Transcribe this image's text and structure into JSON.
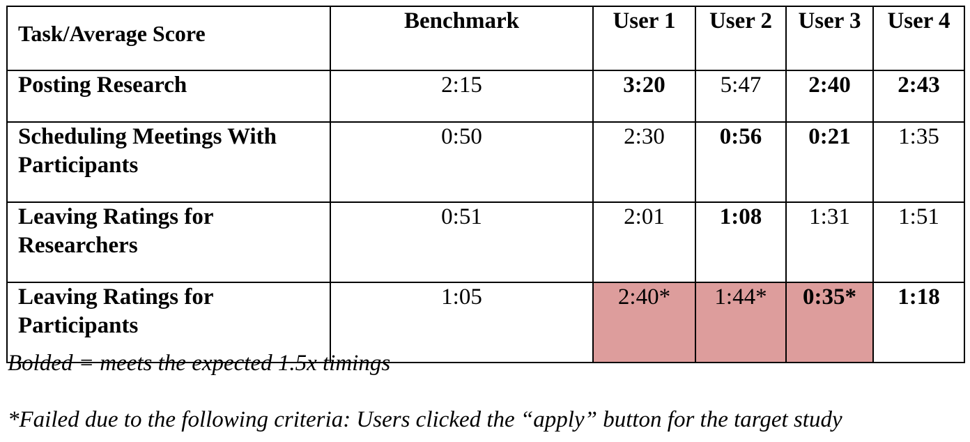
{
  "table": {
    "headers": [
      "Task/Average Score",
      "Benchmark",
      "User 1",
      "User 2",
      "User 3",
      "User 4"
    ],
    "rows": [
      {
        "task": "Posting Research",
        "values": [
          {
            "text": "2:15",
            "bold": false,
            "failed": false
          },
          {
            "text": "3:20",
            "bold": true,
            "failed": false
          },
          {
            "text": "5:47",
            "bold": false,
            "failed": false
          },
          {
            "text": "2:40",
            "bold": true,
            "failed": false
          },
          {
            "text": "2:43",
            "bold": true,
            "failed": false
          }
        ]
      },
      {
        "task": "Scheduling Meetings With Participants",
        "values": [
          {
            "text": "0:50",
            "bold": false,
            "failed": false
          },
          {
            "text": "2:30",
            "bold": false,
            "failed": false
          },
          {
            "text": "0:56",
            "bold": true,
            "failed": false
          },
          {
            "text": "0:21",
            "bold": true,
            "failed": false
          },
          {
            "text": "1:35",
            "bold": false,
            "failed": false
          }
        ]
      },
      {
        "task": "Leaving Ratings for Researchers",
        "values": [
          {
            "text": "0:51",
            "bold": false,
            "failed": false
          },
          {
            "text": "2:01",
            "bold": false,
            "failed": false
          },
          {
            "text": "1:08",
            "bold": true,
            "failed": false
          },
          {
            "text": "1:31",
            "bold": false,
            "failed": false
          },
          {
            "text": "1:51",
            "bold": false,
            "failed": false
          }
        ]
      },
      {
        "task": "Leaving Ratings for Participants",
        "values": [
          {
            "text": "1:05",
            "bold": false,
            "failed": false
          },
          {
            "text": "2:40*",
            "bold": false,
            "failed": true
          },
          {
            "text": "1:44*",
            "bold": false,
            "failed": true
          },
          {
            "text": "0:35*",
            "bold": true,
            "failed": true
          },
          {
            "text": "1:18",
            "bold": true,
            "failed": false
          }
        ]
      }
    ]
  },
  "notes": {
    "legend": "Bolded = meets the expected 1.5x timings",
    "failure": "*Failed due to the following criteria: Users clicked the “apply” button for the target study"
  },
  "colors": {
    "failed_cell_bg": "#dd9d9c",
    "border": "#000000",
    "text": "#000000"
  }
}
